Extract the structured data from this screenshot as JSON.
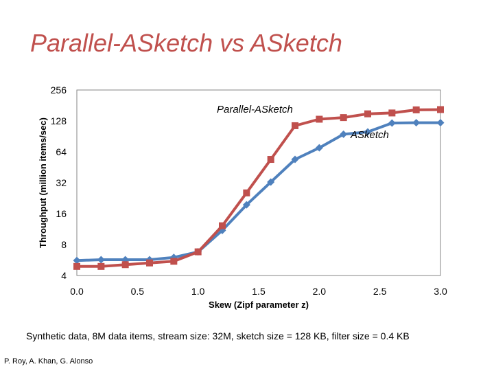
{
  "slide": {
    "title": "Parallel-ASketch vs ASketch",
    "caption": "Synthetic data, 8M data items, stream size: 32M, sketch size = 128 KB, filter size = 0.4 KB",
    "footer": "P. Roy, A. Khan, G. Alonso"
  },
  "chart_data": {
    "type": "line",
    "xlabel": "Skew (Zipf parameter z)",
    "ylabel": "Throughput (million items/sec)",
    "xlim": [
      0,
      3
    ],
    "ylim": [
      4,
      256
    ],
    "y_scale": "log2",
    "x_ticks": [
      "0.0",
      "0.5",
      "1.0",
      "1.5",
      "2.0",
      "2.5",
      "3.0"
    ],
    "y_ticks": [
      "4",
      "8",
      "16",
      "32",
      "64",
      "128",
      "256"
    ],
    "grid": false,
    "series": [
      {
        "name": "ASketch",
        "color": "#4f81bd",
        "marker": "diamond",
        "x": [
          0.0,
          0.2,
          0.4,
          0.6,
          0.8,
          1.0,
          1.2,
          1.4,
          1.6,
          1.8,
          2.0,
          2.2,
          2.4,
          2.6,
          2.8,
          3.0
        ],
        "y": [
          5.6,
          5.7,
          5.7,
          5.7,
          6.0,
          6.8,
          11.0,
          19.5,
          32.5,
          54,
          70,
          95,
          100,
          122,
          123,
          123
        ]
      },
      {
        "name": "Parallel-ASketch",
        "color": "#c0504d",
        "marker": "square",
        "x": [
          0.0,
          0.2,
          0.4,
          0.6,
          0.8,
          1.0,
          1.2,
          1.4,
          1.6,
          1.8,
          2.0,
          2.2,
          2.4,
          2.6,
          2.8,
          3.0
        ],
        "y": [
          4.9,
          4.9,
          5.1,
          5.3,
          5.5,
          6.8,
          12.2,
          25.5,
          54,
          115,
          133,
          138,
          150,
          153,
          164,
          165
        ]
      }
    ],
    "annotations": [
      {
        "text": "Parallel-ASketch",
        "series": "Parallel-ASketch"
      },
      {
        "text": "ASketch",
        "series": "ASketch"
      }
    ]
  }
}
